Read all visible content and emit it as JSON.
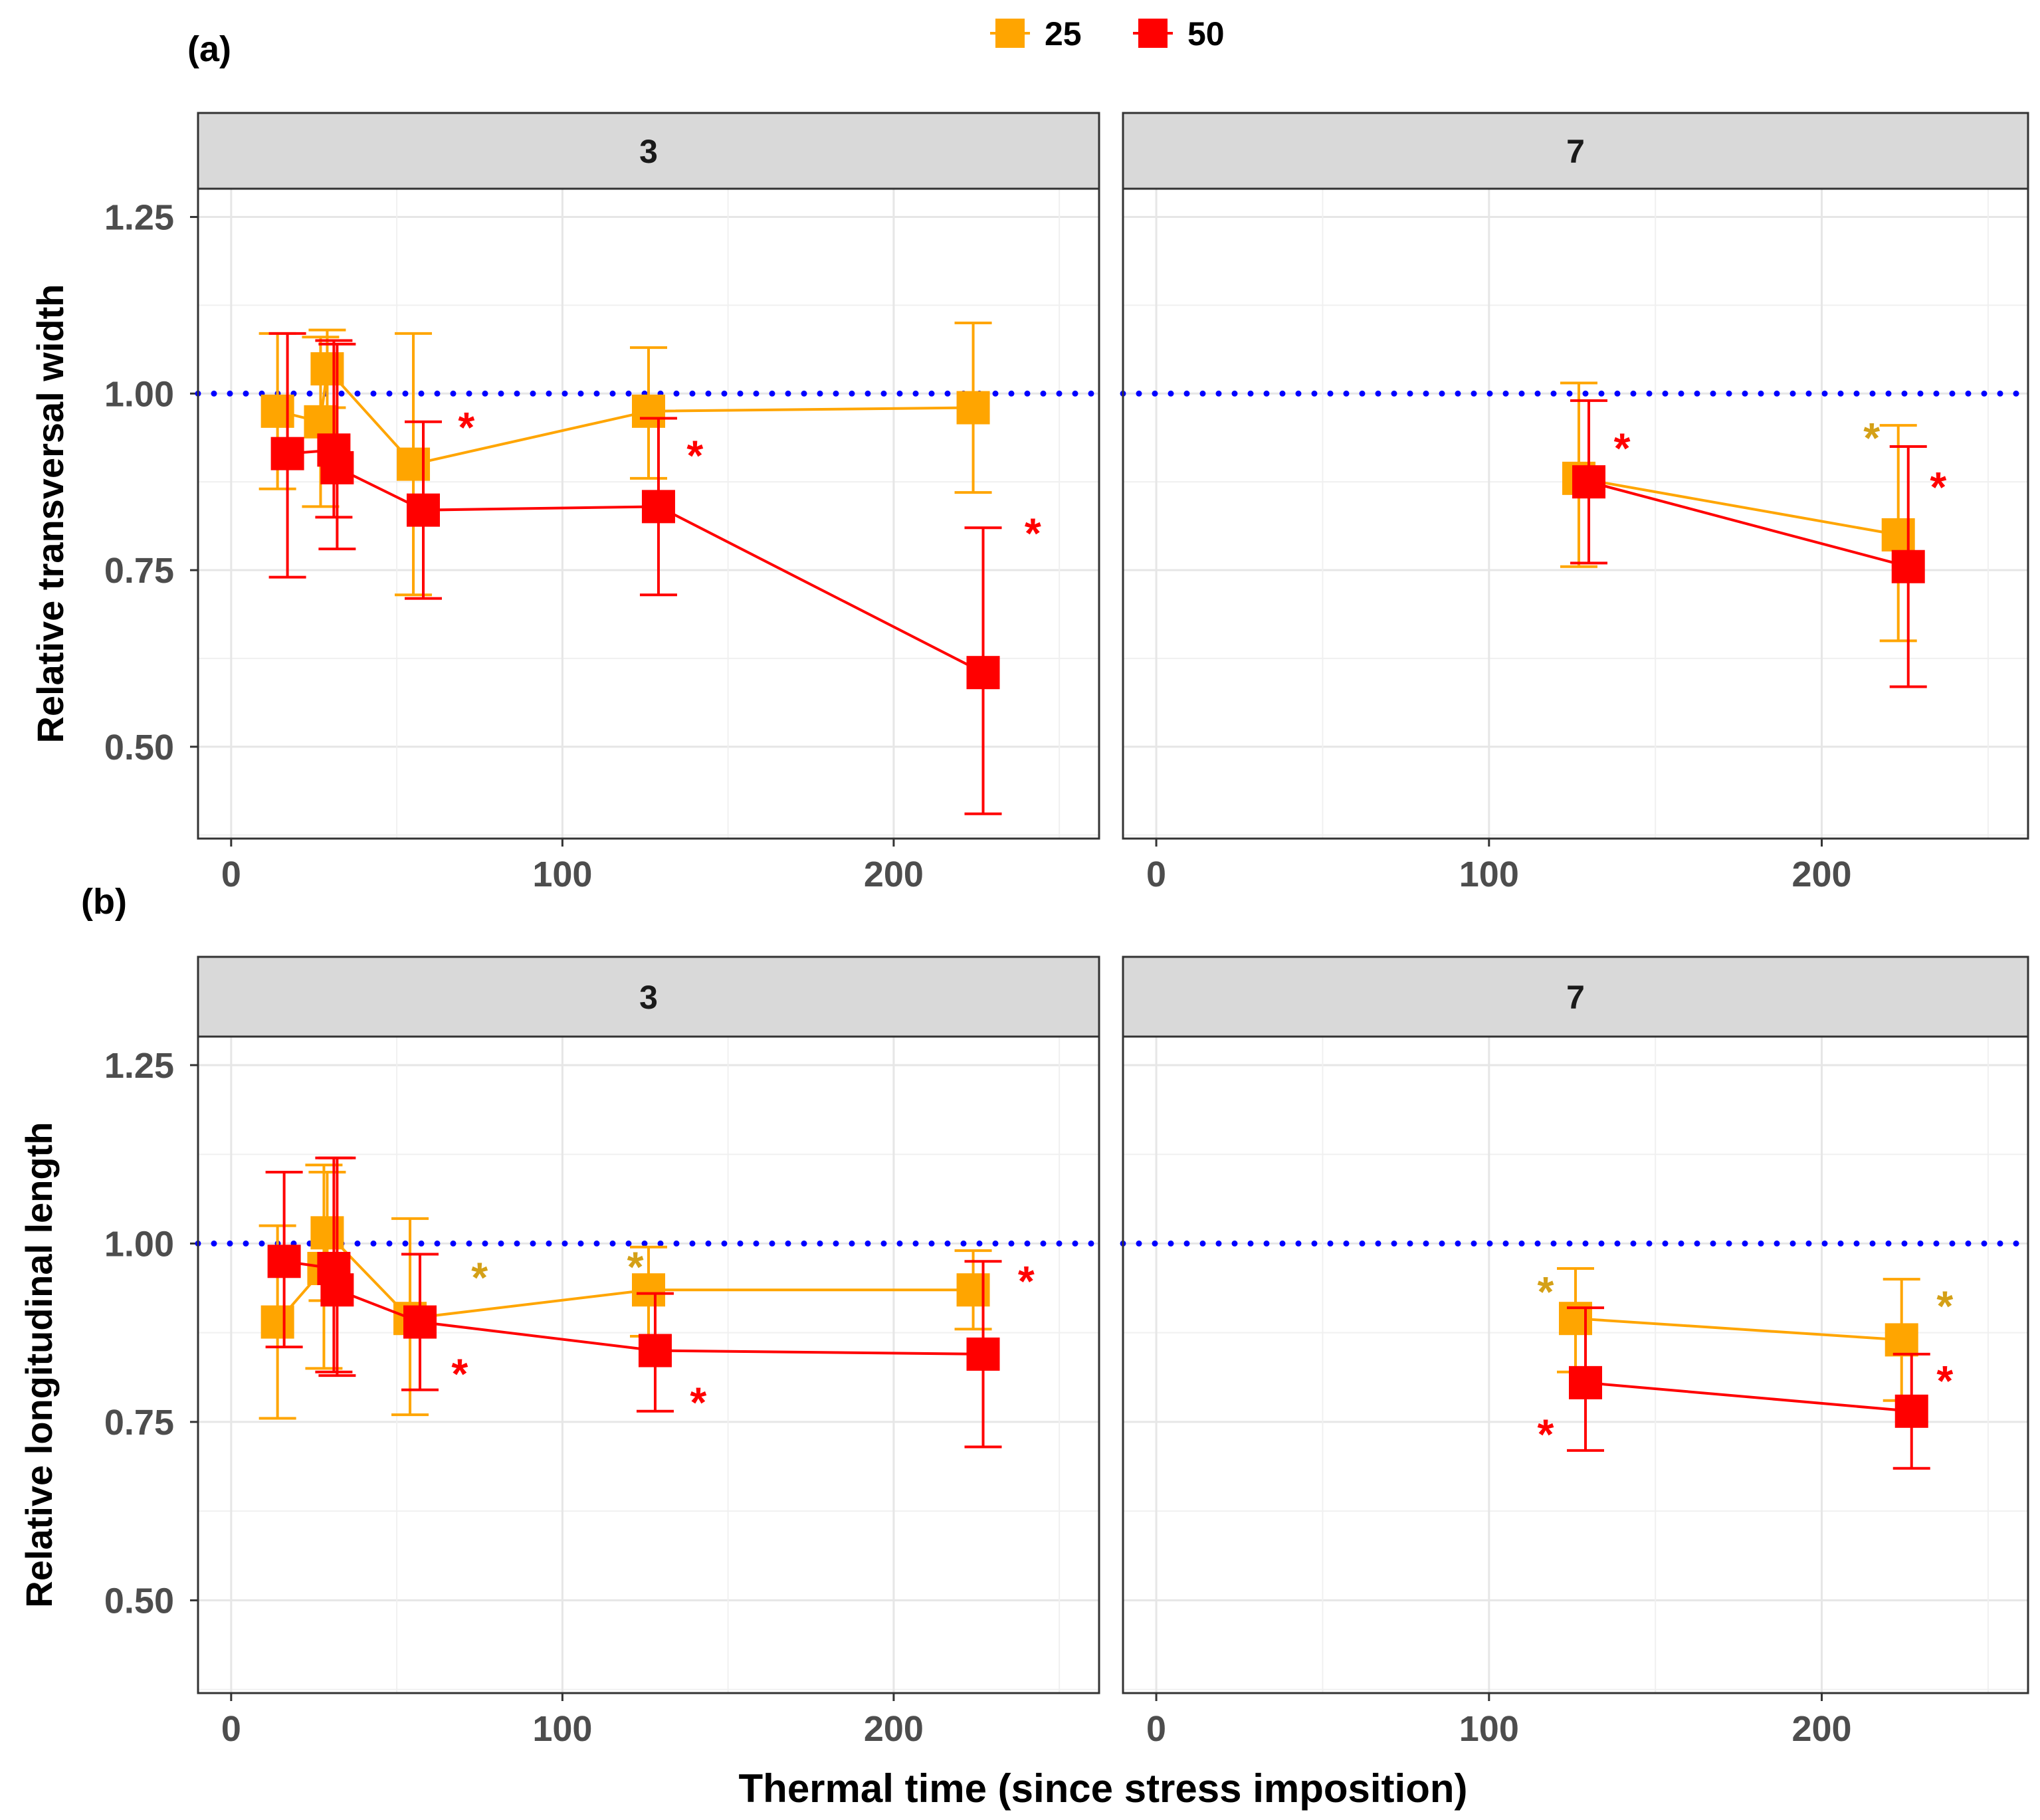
{
  "chart_data": {
    "type": "line",
    "xlabel": "Thermal time (since stress imposition)",
    "legend": {
      "placement": "top-center",
      "entries": [
        {
          "name": "25",
          "color": "#FFA500"
        },
        {
          "name": "50",
          "color": "#FF0000"
        }
      ]
    },
    "reference_line": {
      "y": 1.0,
      "color": "#0000FF",
      "style": "dotted"
    },
    "x_ticks": [
      0,
      100,
      200
    ],
    "xlim": [
      -10,
      262
    ],
    "asterisk_colors": {
      "25": "#D4A017",
      "50": "#FF0000"
    },
    "panels": [
      {
        "id": "a",
        "label": "(a)",
        "ylabel": "Relative transversal width",
        "ylim": [
          0.37,
          1.29
        ],
        "y_ticks": [
          "0.50",
          "0.75",
          "1.00",
          "1.25"
        ],
        "facets": [
          {
            "strip": "3",
            "series": [
              {
                "name": "25",
                "points": [
                  {
                    "x": 14,
                    "y": 0.975,
                    "lo": 0.865,
                    "hi": 1.085
                  },
                  {
                    "x": 27,
                    "y": 0.96,
                    "lo": 0.84,
                    "hi": 1.08
                  },
                  {
                    "x": 29,
                    "y": 1.035,
                    "lo": 0.98,
                    "hi": 1.09
                  },
                  {
                    "x": 55,
                    "y": 0.9,
                    "lo": 0.715,
                    "hi": 1.085
                  },
                  {
                    "x": 126,
                    "y": 0.975,
                    "lo": 0.88,
                    "hi": 1.065
                  },
                  {
                    "x": 224,
                    "y": 0.98,
                    "lo": 0.86,
                    "hi": 1.1
                  }
                ]
              },
              {
                "name": "50",
                "points": [
                  {
                    "x": 17,
                    "y": 0.915,
                    "lo": 0.74,
                    "hi": 1.085
                  },
                  {
                    "x": 31,
                    "y": 0.92,
                    "lo": 0.825,
                    "hi": 1.075
                  },
                  {
                    "x": 32,
                    "y": 0.895,
                    "lo": 0.78,
                    "hi": 1.07
                  },
                  {
                    "x": 58,
                    "y": 0.835,
                    "lo": 0.71,
                    "hi": 0.96
                  },
                  {
                    "x": 129,
                    "y": 0.84,
                    "lo": 0.715,
                    "hi": 0.965
                  },
                  {
                    "x": 227,
                    "y": 0.605,
                    "lo": 0.405,
                    "hi": 0.81
                  }
                ]
              }
            ],
            "asterisks": [
              {
                "series": "50",
                "x": 71,
                "y": 0.96
              },
              {
                "series": "50",
                "x": 140,
                "y": 0.92
              },
              {
                "series": "50",
                "x": 242,
                "y": 0.81
              }
            ]
          },
          {
            "strip": "7",
            "series": [
              {
                "name": "25",
                "points": [
                  {
                    "x": 127,
                    "y": 0.88,
                    "lo": 0.755,
                    "hi": 1.015
                  },
                  {
                    "x": 223,
                    "y": 0.8,
                    "lo": 0.65,
                    "hi": 0.955
                  }
                ]
              },
              {
                "name": "50",
                "points": [
                  {
                    "x": 130,
                    "y": 0.875,
                    "lo": 0.76,
                    "hi": 0.99
                  },
                  {
                    "x": 226,
                    "y": 0.755,
                    "lo": 0.585,
                    "hi": 0.925
                  }
                ]
              }
            ],
            "asterisks": [
              {
                "series": "50",
                "x": 140,
                "y": 0.93
              },
              {
                "series": "25",
                "x": 215,
                "y": 0.945
              },
              {
                "series": "50",
                "x": 235,
                "y": 0.875
              }
            ]
          }
        ]
      },
      {
        "id": "b",
        "label": "(b)",
        "ylabel": "Relative longitudinal length",
        "ylim": [
          0.37,
          1.29
        ],
        "y_ticks": [
          "0.50",
          "0.75",
          "1.00",
          "1.25"
        ],
        "facets": [
          {
            "strip": "3",
            "series": [
              {
                "name": "25",
                "points": [
                  {
                    "x": 14,
                    "y": 0.89,
                    "lo": 0.755,
                    "hi": 1.025
                  },
                  {
                    "x": 28,
                    "y": 0.965,
                    "lo": 0.825,
                    "hi": 1.11
                  },
                  {
                    "x": 29,
                    "y": 1.015,
                    "lo": 0.92,
                    "hi": 1.1
                  },
                  {
                    "x": 54,
                    "y": 0.895,
                    "lo": 0.76,
                    "hi": 1.035
                  },
                  {
                    "x": 126,
                    "y": 0.935,
                    "lo": 0.87,
                    "hi": 0.995
                  },
                  {
                    "x": 224,
                    "y": 0.935,
                    "lo": 0.88,
                    "hi": 0.99
                  }
                ]
              },
              {
                "name": "50",
                "points": [
                  {
                    "x": 16,
                    "y": 0.975,
                    "lo": 0.855,
                    "hi": 1.1
                  },
                  {
                    "x": 31,
                    "y": 0.965,
                    "lo": 0.82,
                    "hi": 1.12
                  },
                  {
                    "x": 32,
                    "y": 0.935,
                    "lo": 0.815,
                    "hi": 1.12
                  },
                  {
                    "x": 57,
                    "y": 0.89,
                    "lo": 0.795,
                    "hi": 0.985
                  },
                  {
                    "x": 128,
                    "y": 0.85,
                    "lo": 0.765,
                    "hi": 0.93
                  },
                  {
                    "x": 227,
                    "y": 0.845,
                    "lo": 0.715,
                    "hi": 0.975
                  }
                ]
              }
            ],
            "asterisks": [
              {
                "series": "25",
                "x": 75,
                "y": 0.96
              },
              {
                "series": "25",
                "x": 122,
                "y": 0.975
              },
              {
                "series": "50",
                "x": 69,
                "y": 0.825
              },
              {
                "series": "50",
                "x": 141,
                "y": 0.785
              },
              {
                "series": "50",
                "x": 240,
                "y": 0.955
              }
            ]
          },
          {
            "strip": "7",
            "series": [
              {
                "name": "25",
                "points": [
                  {
                    "x": 126,
                    "y": 0.895,
                    "lo": 0.82,
                    "hi": 0.965
                  },
                  {
                    "x": 224,
                    "y": 0.865,
                    "lo": 0.78,
                    "hi": 0.95
                  }
                ]
              },
              {
                "name": "50",
                "points": [
                  {
                    "x": 129,
                    "y": 0.805,
                    "lo": 0.71,
                    "hi": 0.91
                  },
                  {
                    "x": 227,
                    "y": 0.765,
                    "lo": 0.685,
                    "hi": 0.845
                  }
                ]
              }
            ],
            "asterisks": [
              {
                "series": "25",
                "x": 117,
                "y": 0.94
              },
              {
                "series": "25",
                "x": 237,
                "y": 0.92
              },
              {
                "series": "50",
                "x": 117,
                "y": 0.74
              },
              {
                "series": "50",
                "x": 237,
                "y": 0.815
              }
            ]
          }
        ]
      }
    ]
  }
}
